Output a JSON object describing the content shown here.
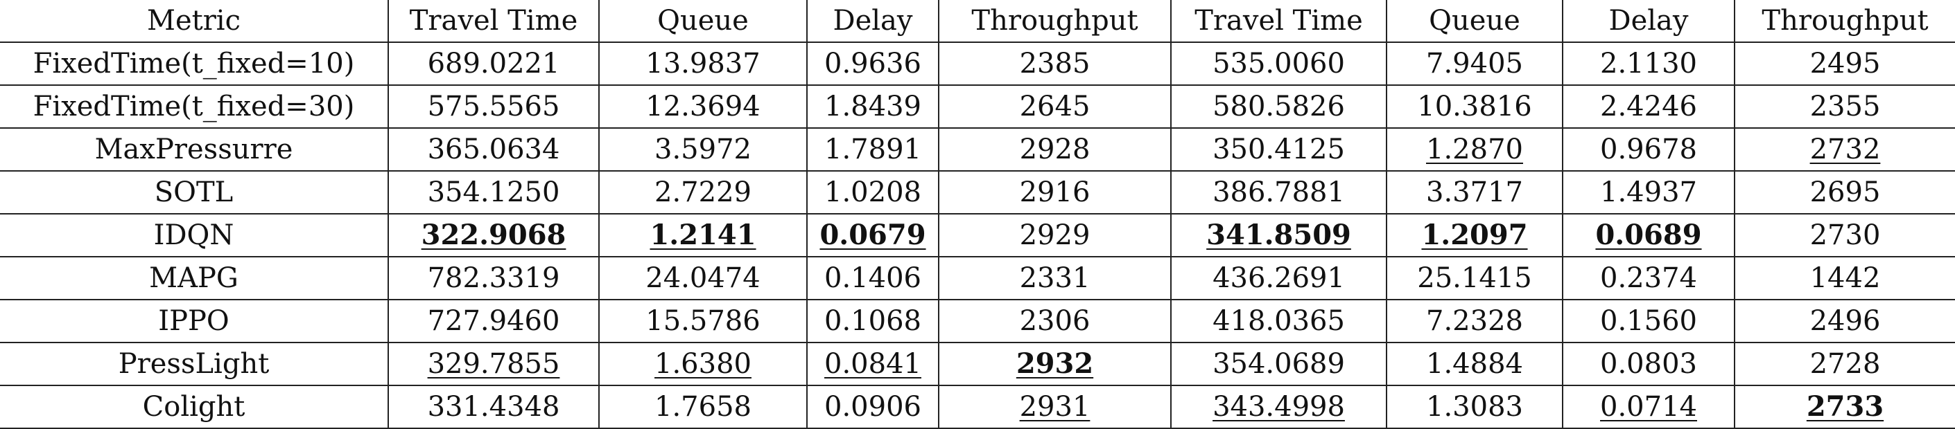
{
  "table": {
    "headers": [
      "Metric",
      "Travel Time",
      "Queue",
      "Delay",
      "Throughput",
      "Travel Time",
      "Queue",
      "Delay",
      "Throughput"
    ],
    "rows": [
      {
        "name": "FixedTime(t_fixed=10)",
        "cells": [
          {
            "text": "689.0221"
          },
          {
            "text": "13.9837"
          },
          {
            "text": "0.9636"
          },
          {
            "text": "2385"
          },
          {
            "text": "535.0060"
          },
          {
            "text": "7.9405"
          },
          {
            "text": "2.1130"
          },
          {
            "text": "2495"
          }
        ]
      },
      {
        "name": "FixedTime(t_fixed=30)",
        "cells": [
          {
            "text": "575.5565"
          },
          {
            "text": "12.3694"
          },
          {
            "text": "1.8439"
          },
          {
            "text": "2645"
          },
          {
            "text": "580.5826"
          },
          {
            "text": "10.3816"
          },
          {
            "text": "2.4246"
          },
          {
            "text": "2355"
          }
        ]
      },
      {
        "name": "MaxPressurre",
        "cells": [
          {
            "text": "365.0634"
          },
          {
            "text": "3.5972"
          },
          {
            "text": "1.7891"
          },
          {
            "text": "2928"
          },
          {
            "text": "350.4125"
          },
          {
            "text": "1.2870",
            "underline": true
          },
          {
            "text": "0.9678"
          },
          {
            "text": "2732",
            "underline": true
          }
        ]
      },
      {
        "name": "SOTL",
        "cells": [
          {
            "text": "354.1250"
          },
          {
            "text": "2.7229"
          },
          {
            "text": "1.0208"
          },
          {
            "text": "2916"
          },
          {
            "text": "386.7881"
          },
          {
            "text": "3.3717"
          },
          {
            "text": "1.4937"
          },
          {
            "text": "2695"
          }
        ]
      },
      {
        "name": "IDQN",
        "cells": [
          {
            "text": "322.9068",
            "bold": true,
            "underline": true
          },
          {
            "text": "1.2141",
            "bold": true,
            "underline": true
          },
          {
            "text": "0.0679",
            "bold": true,
            "underline": true
          },
          {
            "text": "2929"
          },
          {
            "text": "341.8509",
            "bold": true,
            "underline": true
          },
          {
            "text": "1.2097",
            "bold": true,
            "underline": true
          },
          {
            "text": "0.0689",
            "bold": true,
            "underline": true
          },
          {
            "text": "2730"
          }
        ]
      },
      {
        "name": "MAPG",
        "cells": [
          {
            "text": "782.3319"
          },
          {
            "text": "24.0474"
          },
          {
            "text": "0.1406"
          },
          {
            "text": "2331"
          },
          {
            "text": "436.2691"
          },
          {
            "text": "25.1415"
          },
          {
            "text": "0.2374"
          },
          {
            "text": "1442"
          }
        ]
      },
      {
        "name": "IPPO",
        "cells": [
          {
            "text": "727.9460"
          },
          {
            "text": "15.5786"
          },
          {
            "text": "0.1068"
          },
          {
            "text": "2306"
          },
          {
            "text": "418.0365"
          },
          {
            "text": "7.2328"
          },
          {
            "text": "0.1560"
          },
          {
            "text": "2496"
          }
        ]
      },
      {
        "name": "PressLight",
        "cells": [
          {
            "text": "329.7855",
            "underline": true
          },
          {
            "text": "1.6380",
            "underline": true
          },
          {
            "text": "0.0841",
            "underline": true
          },
          {
            "text": "2932",
            "bold": true,
            "underline": true
          },
          {
            "text": "354.0689"
          },
          {
            "text": "1.4884"
          },
          {
            "text": "0.0803"
          },
          {
            "text": "2728"
          }
        ]
      },
      {
        "name": "Colight",
        "cells": [
          {
            "text": "331.4348"
          },
          {
            "text": "1.7658"
          },
          {
            "text": "0.0906"
          },
          {
            "text": "2931",
            "underline": true
          },
          {
            "text": "343.4998",
            "underline": true
          },
          {
            "text": "1.3083"
          },
          {
            "text": "0.0714",
            "underline": true
          },
          {
            "text": "2733",
            "bold": true,
            "underline": true
          }
        ]
      }
    ]
  }
}
